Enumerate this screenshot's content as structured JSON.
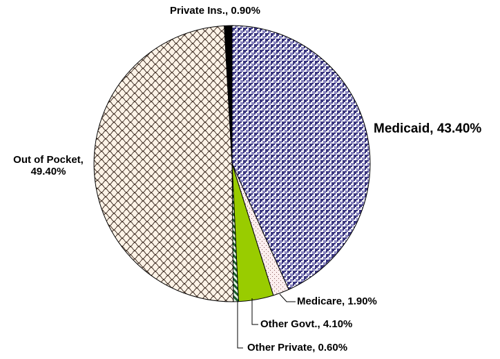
{
  "chart_data": {
    "type": "pie",
    "title": "",
    "start_angle_deg": 0,
    "direction": "clockwise",
    "slices": [
      {
        "label": "Medicaid",
        "value": 43.4,
        "display": "Medicaid, 43.40%",
        "fill": "#3a3680",
        "pattern": "checker-navy"
      },
      {
        "label": "Medicare",
        "value": 1.9,
        "display": "Medicare, 1.90%",
        "fill": "#fbeeee",
        "pattern": "dots-pink"
      },
      {
        "label": "Other Govt.",
        "value": 4.1,
        "display": "Other Govt., 4.10%",
        "fill": "#99cc00",
        "pattern": "solid"
      },
      {
        "label": "Other Private",
        "value": 0.6,
        "display": "Other Private, 0.60%",
        "fill": "#1a5c2a",
        "pattern": "diagonal-green"
      },
      {
        "label": "Out of Pocket",
        "value": 49.4,
        "display": "Out of Pocket, 49.40%",
        "fill": "#fdf3e7",
        "pattern": "scallop-beige"
      },
      {
        "label": "Private Ins.",
        "value": 0.9,
        "display": "Private Ins., 0.90%",
        "fill": "#000000",
        "pattern": "solid"
      }
    ]
  },
  "labels": {
    "private_ins": "Private Ins., 0.90%",
    "medicaid": "Medicaid, 43.40%",
    "out_of_pocket_line1": "Out of Pocket,",
    "out_of_pocket_line2": "49.40%",
    "medicare": "Medicare, 1.90%",
    "other_govt": "Other Govt., 4.10%",
    "other_private": "Other Private, 0.60%"
  }
}
